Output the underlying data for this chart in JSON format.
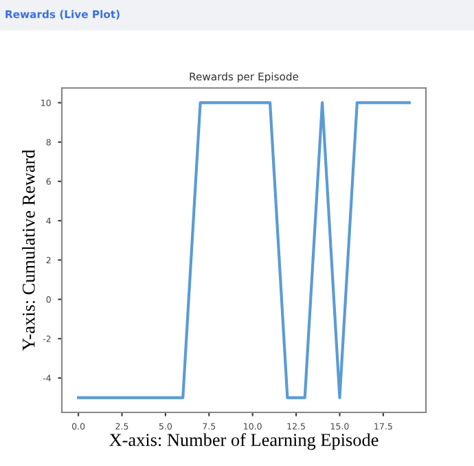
{
  "chart_data": {
    "type": "line",
    "title": "Rewards per Episode",
    "xlabel": "X-axis: Number of Learning Episode",
    "ylabel": "Y-axis: Cumulative Reward",
    "annotations": [
      "Rewards (Live Plot)"
    ],
    "x": [
      0,
      1,
      2,
      3,
      4,
      5,
      6,
      7,
      8,
      9,
      10,
      11,
      12,
      13,
      14,
      15,
      16,
      17,
      18,
      19
    ],
    "series": [
      {
        "color": "#5b9bd5",
        "values": [
          -5,
          -5,
          -5,
          -5,
          -5,
          -5,
          -5,
          10,
          10,
          10,
          10,
          10,
          -5,
          -5,
          10,
          -5,
          10,
          10,
          10,
          10
        ]
      }
    ],
    "xlim": [
      -0.95,
      19.95
    ],
    "xticks": [
      {
        "value": 0,
        "label": "0.0"
      },
      {
        "value": 2.5,
        "label": "2.5"
      },
      {
        "value": 5,
        "label": "5.0"
      },
      {
        "value": 7.5,
        "label": "7.5"
      },
      {
        "value": 10,
        "label": "10.0"
      },
      {
        "value": 12.5,
        "label": "12.5"
      },
      {
        "value": 15,
        "label": "15.0"
      },
      {
        "value": 17.5,
        "label": "17.5"
      }
    ],
    "ylim": [
      -5.75,
      10.75
    ],
    "yticks": [
      -4,
      -2,
      0,
      2,
      4,
      6,
      8,
      10
    ],
    "grid": false,
    "legend": false,
    "marker": "none",
    "line_style": "solid"
  }
}
